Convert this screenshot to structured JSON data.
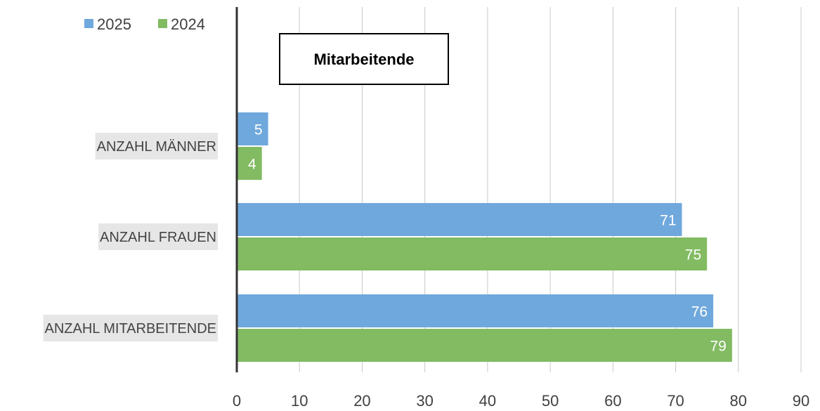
{
  "chart_data": {
    "type": "bar",
    "orientation": "horizontal",
    "title": "Mitarbeitende",
    "categories": [
      "ANZAHL MÄNNER",
      "ANZAHL FRAUEN",
      "ANZAHL MITARBEITENDE"
    ],
    "series": [
      {
        "name": "2025",
        "color": "#6fa8dc",
        "values": [
          5,
          71,
          76
        ]
      },
      {
        "name": "2024",
        "color": "#82bb62",
        "values": [
          4,
          75,
          79
        ]
      }
    ],
    "xlim": [
      0,
      90
    ],
    "xticks": [
      0,
      10,
      20,
      30,
      40,
      50,
      60,
      70,
      80,
      90
    ],
    "grid": true,
    "legend_position": "top-left",
    "data_labels": true
  }
}
